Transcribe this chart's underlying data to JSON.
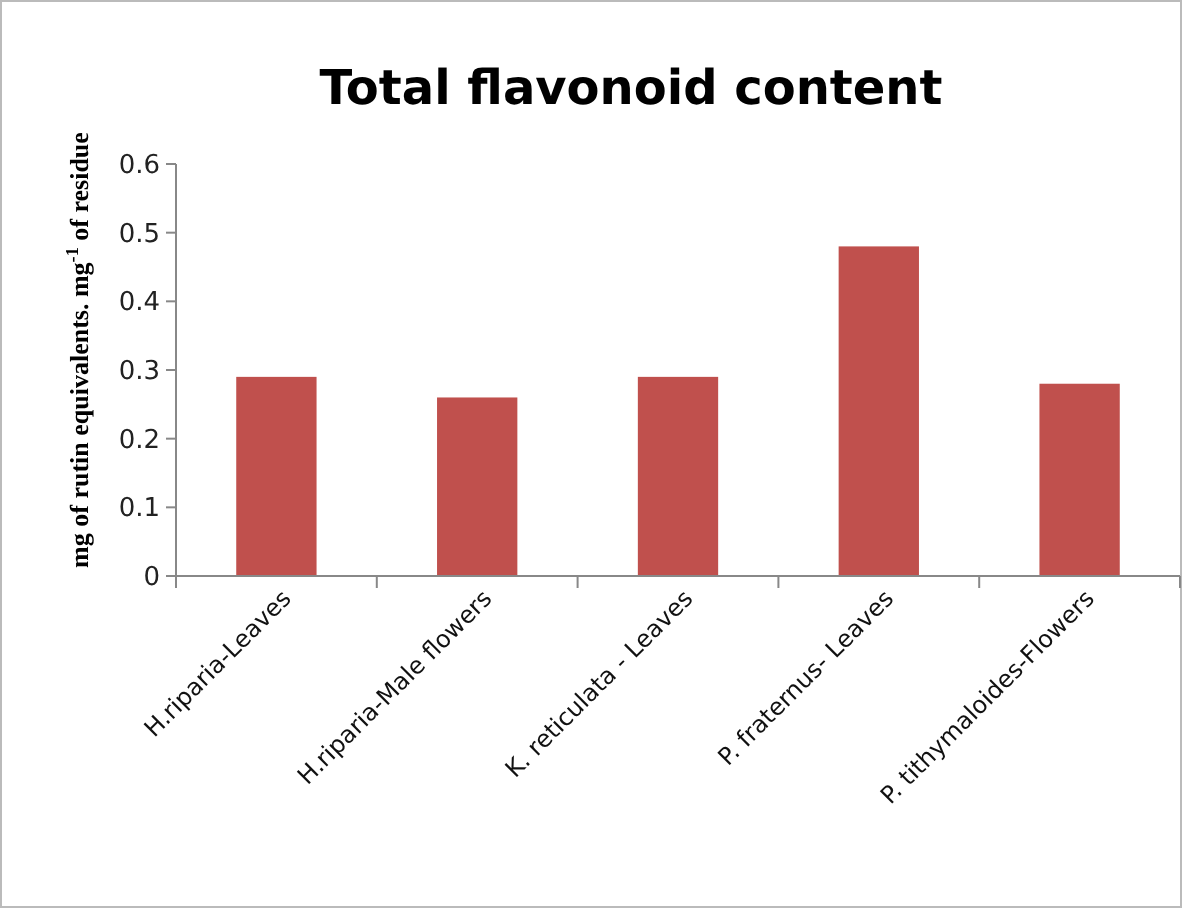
{
  "chart_data": {
    "type": "bar",
    "title": "Total flavonoid content",
    "ylabel": "mg of rutin equivalents. mg$^{-1}$ of residue",
    "categories": [
      "H.riparia-Leaves",
      "H.riparia-Male flowers",
      "K. reticulata - Leaves",
      "P. fraternus- Leaves",
      "P. tithymaloides-Flowers"
    ],
    "values": [
      0.29,
      0.26,
      0.29,
      0.48,
      0.28
    ],
    "color": "#c0504d",
    "ylim": [
      0,
      0.6
    ],
    "yticks": [
      0,
      0.1,
      0.2,
      0.3,
      0.4,
      0.5,
      0.6
    ],
    "grid": false
  }
}
